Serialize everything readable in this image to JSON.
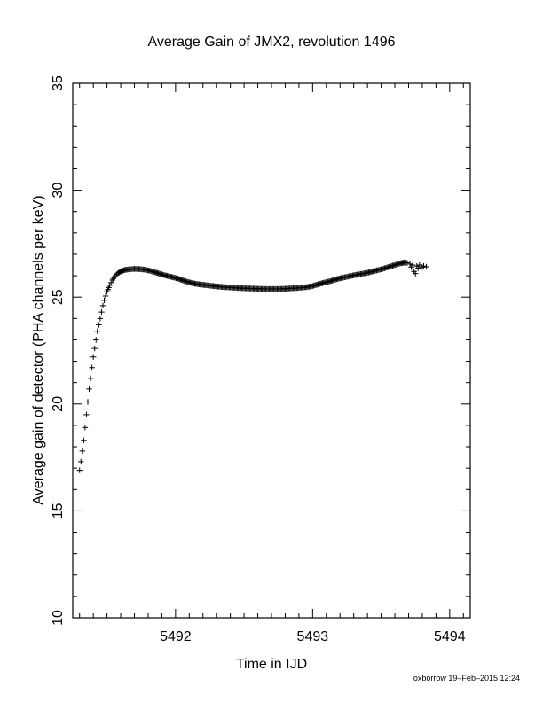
{
  "chart_data": {
    "type": "scatter",
    "title": "Average Gain of JMX2, revolution 1496",
    "xlabel": "Time in IJD",
    "ylabel": "Average gain of detector (PHA channels per keV)",
    "footer": "oxborrow 19–Feb–2015 12:24",
    "xlim": [
      5491.25,
      5494.15
    ],
    "ylim": [
      10,
      35
    ],
    "x_ticks": [
      5492,
      5493,
      5494
    ],
    "y_ticks": [
      10,
      15,
      20,
      25,
      30,
      35
    ],
    "marker": "+",
    "grid": false,
    "legend": "none",
    "series": [
      {
        "points": [
          [
            5491.3,
            16.9
          ],
          [
            5491.31,
            17.3
          ],
          [
            5491.32,
            17.8
          ],
          [
            5491.33,
            18.3
          ],
          [
            5491.34,
            18.9
          ],
          [
            5491.35,
            19.5
          ],
          [
            5491.36,
            20.1
          ],
          [
            5491.37,
            20.7
          ],
          [
            5491.38,
            21.2
          ],
          [
            5491.39,
            21.7
          ],
          [
            5491.4,
            22.2
          ],
          [
            5491.41,
            22.6
          ],
          [
            5491.42,
            23.0
          ],
          [
            5491.43,
            23.4
          ],
          [
            5491.44,
            23.7
          ],
          [
            5491.45,
            24.0
          ],
          [
            5491.46,
            24.3
          ],
          [
            5491.47,
            24.6
          ],
          [
            5491.48,
            24.85
          ],
          [
            5491.49,
            25.05
          ],
          [
            5491.5,
            25.25
          ],
          [
            5491.52,
            25.55
          ],
          [
            5491.54,
            25.8
          ],
          [
            5491.56,
            26.0
          ],
          [
            5491.58,
            26.12
          ],
          [
            5491.6,
            26.2
          ],
          [
            5491.63,
            26.27
          ],
          [
            5491.66,
            26.3
          ],
          [
            5491.7,
            26.32
          ],
          [
            5491.74,
            26.31
          ],
          [
            5491.78,
            26.28
          ],
          [
            5491.82,
            26.22
          ],
          [
            5491.86,
            26.14
          ],
          [
            5491.9,
            26.06
          ],
          [
            5491.94,
            25.99
          ],
          [
            5491.98,
            25.93
          ],
          [
            5492.02,
            25.86
          ],
          [
            5492.06,
            25.77
          ],
          [
            5492.1,
            25.69
          ],
          [
            5492.14,
            25.63
          ],
          [
            5492.18,
            25.59
          ],
          [
            5492.22,
            25.56
          ],
          [
            5492.26,
            25.53
          ],
          [
            5492.3,
            25.5
          ],
          [
            5492.35,
            25.47
          ],
          [
            5492.4,
            25.45
          ],
          [
            5492.45,
            25.43
          ],
          [
            5492.5,
            25.41
          ],
          [
            5492.55,
            25.4
          ],
          [
            5492.6,
            25.39
          ],
          [
            5492.65,
            25.38
          ],
          [
            5492.7,
            25.38
          ],
          [
            5492.75,
            25.38
          ],
          [
            5492.8,
            25.39
          ],
          [
            5492.85,
            25.41
          ],
          [
            5492.9,
            25.43
          ],
          [
            5492.95,
            25.46
          ],
          [
            5493.0,
            25.52
          ],
          [
            5493.04,
            25.6
          ],
          [
            5493.08,
            25.67
          ],
          [
            5493.12,
            25.73
          ],
          [
            5493.16,
            25.81
          ],
          [
            5493.2,
            25.88
          ],
          [
            5493.25,
            25.95
          ],
          [
            5493.3,
            26.02
          ],
          [
            5493.35,
            26.08
          ],
          [
            5493.4,
            26.14
          ],
          [
            5493.45,
            26.22
          ],
          [
            5493.5,
            26.3
          ],
          [
            5493.55,
            26.4
          ],
          [
            5493.6,
            26.5
          ],
          [
            5493.64,
            26.58
          ],
          [
            5493.67,
            26.62
          ],
          [
            5493.69,
            26.6
          ],
          [
            5493.71,
            26.55
          ],
          [
            5493.72,
            26.4
          ],
          [
            5493.73,
            26.5
          ],
          [
            5493.74,
            26.2
          ],
          [
            5493.75,
            26.1
          ],
          [
            5493.76,
            26.45
          ],
          [
            5493.77,
            26.35
          ],
          [
            5493.78,
            26.5
          ],
          [
            5493.8,
            26.4
          ],
          [
            5493.81,
            26.45
          ],
          [
            5493.83,
            26.42
          ]
        ]
      }
    ]
  }
}
